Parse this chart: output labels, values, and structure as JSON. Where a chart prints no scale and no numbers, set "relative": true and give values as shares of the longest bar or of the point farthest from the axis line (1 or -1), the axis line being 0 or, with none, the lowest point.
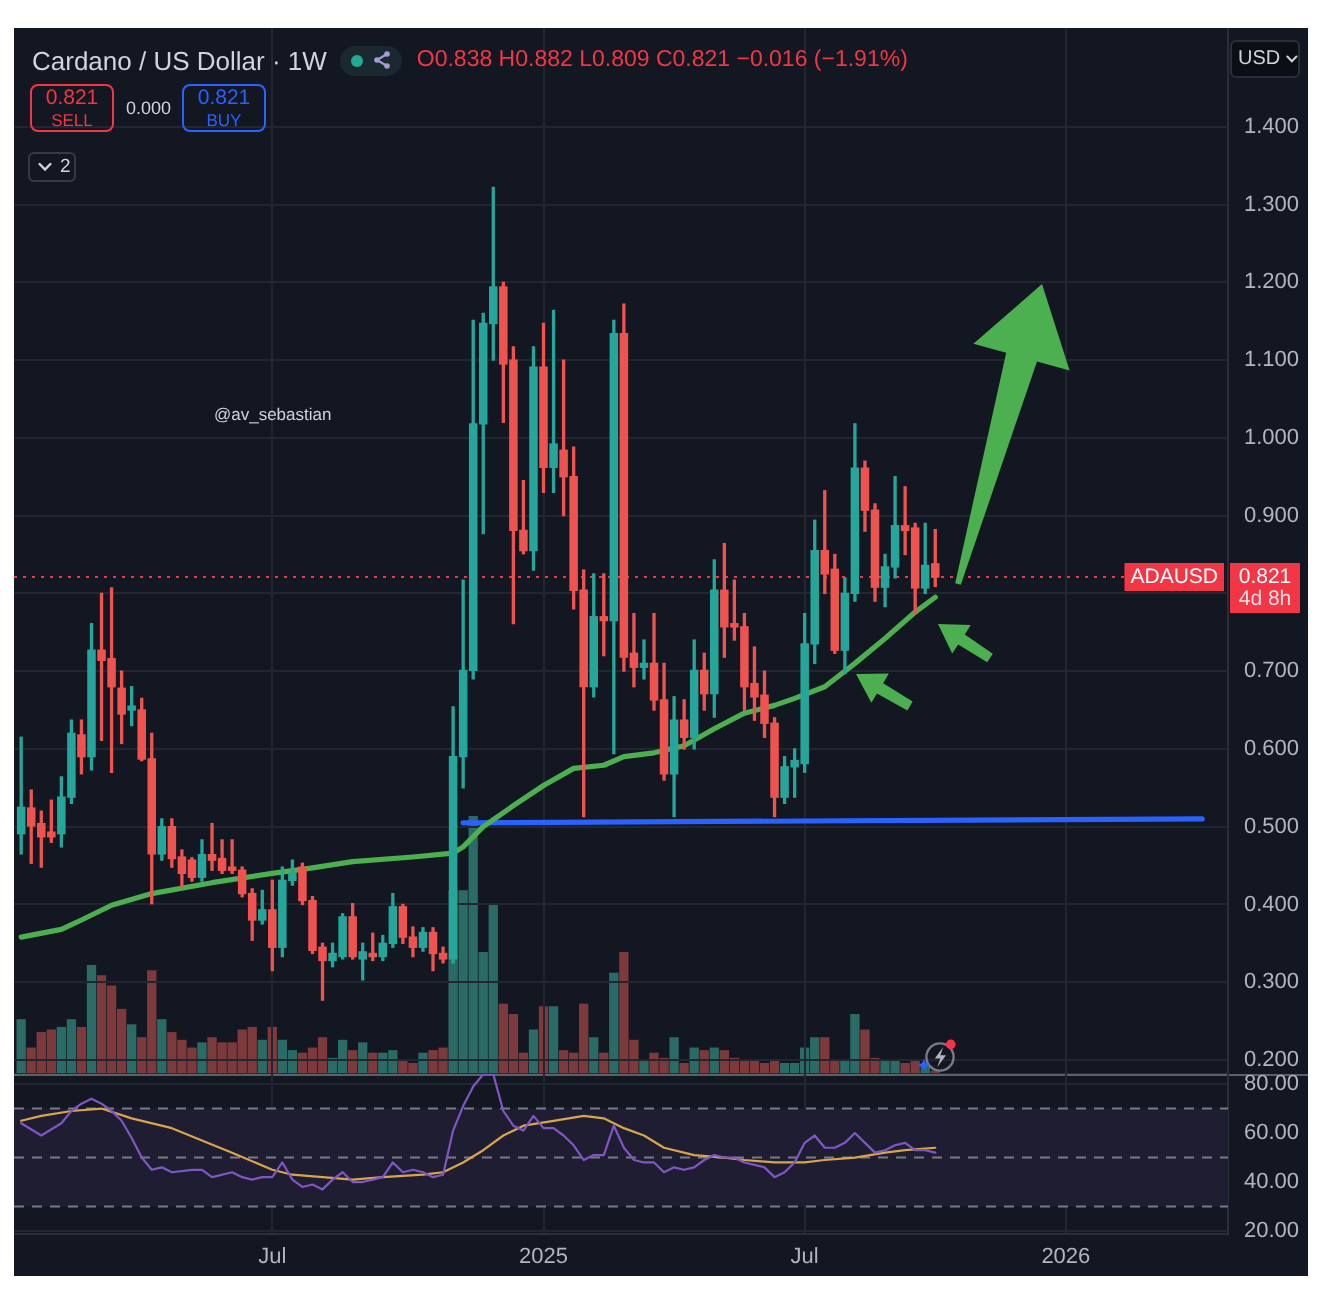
{
  "chart_data": [
    {
      "type": "candlestick",
      "title": "Cardano / US Dollar · 1W",
      "subtitle": "O0.838 H0.882 L0.809 C0.821 −0.016 (−1.91%)",
      "x": [
        "2024-01-08",
        "2024-01-15",
        "2024-01-22",
        "2024-01-29",
        "2024-02-05",
        "2024-02-12",
        "2024-02-19",
        "2024-02-26",
        "2024-03-04",
        "2024-03-11",
        "2024-03-18",
        "2024-03-25",
        "2024-04-01",
        "2024-04-08",
        "2024-04-15",
        "2024-04-22",
        "2024-04-29",
        "2024-05-06",
        "2024-05-13",
        "2024-05-20",
        "2024-05-27",
        "2024-06-03",
        "2024-06-10",
        "2024-06-17",
        "2024-06-24",
        "2024-07-01",
        "2024-07-08",
        "2024-07-15",
        "2024-07-22",
        "2024-07-29",
        "2024-08-05",
        "2024-08-12",
        "2024-08-19",
        "2024-08-26",
        "2024-09-02",
        "2024-09-09",
        "2024-09-16",
        "2024-09-23",
        "2024-09-30",
        "2024-10-07",
        "2024-10-14",
        "2024-10-21",
        "2024-10-28",
        "2024-11-04",
        "2024-11-11",
        "2024-11-18",
        "2024-11-25",
        "2024-12-02",
        "2024-12-09",
        "2024-12-16",
        "2024-12-23",
        "2024-12-30",
        "2025-01-06",
        "2025-01-13",
        "2025-01-20",
        "2025-01-27",
        "2025-02-03",
        "2025-02-10",
        "2025-02-17",
        "2025-02-24",
        "2025-03-03",
        "2025-03-10",
        "2025-03-17",
        "2025-03-24",
        "2025-03-31",
        "2025-04-07",
        "2025-04-14",
        "2025-04-21",
        "2025-04-28",
        "2025-05-05",
        "2025-05-12",
        "2025-05-19",
        "2025-05-26",
        "2025-06-02",
        "2025-06-09",
        "2025-06-16",
        "2025-06-23",
        "2025-06-30",
        "2025-07-07",
        "2025-07-14",
        "2025-07-21",
        "2025-07-28",
        "2025-08-04",
        "2025-08-11",
        "2025-08-18",
        "2025-08-25",
        "2025-09-01",
        "2025-09-08",
        "2025-09-15",
        "2025-09-22",
        "2025-09-29",
        "2025-10-06"
      ],
      "ohlc": [
        [
          0.491,
          0.615,
          0.465,
          0.525
        ],
        [
          0.524,
          0.547,
          0.453,
          0.501
        ],
        [
          0.504,
          0.52,
          0.448,
          0.487
        ],
        [
          0.493,
          0.534,
          0.48,
          0.487
        ],
        [
          0.491,
          0.564,
          0.474,
          0.538
        ],
        [
          0.538,
          0.637,
          0.53,
          0.62
        ],
        [
          0.618,
          0.637,
          0.568,
          0.59
        ],
        [
          0.59,
          0.761,
          0.573,
          0.727
        ],
        [
          0.727,
          0.8,
          0.611,
          0.714
        ],
        [
          0.716,
          0.807,
          0.57,
          0.68
        ],
        [
          0.678,
          0.7,
          0.607,
          0.645
        ],
        [
          0.65,
          0.68,
          0.63,
          0.655
        ],
        [
          0.65,
          0.665,
          0.585,
          0.587
        ],
        [
          0.587,
          0.62,
          0.401,
          0.465
        ],
        [
          0.465,
          0.51,
          0.457,
          0.5
        ],
        [
          0.5,
          0.51,
          0.448,
          0.459
        ],
        [
          0.461,
          0.47,
          0.423,
          0.44
        ],
        [
          0.457,
          0.46,
          0.43,
          0.435
        ],
        [
          0.435,
          0.483,
          0.43,
          0.464
        ],
        [
          0.464,
          0.504,
          0.444,
          0.457
        ],
        [
          0.459,
          0.483,
          0.44,
          0.444
        ],
        [
          0.448,
          0.483,
          0.44,
          0.444
        ],
        [
          0.444,
          0.448,
          0.41,
          0.414
        ],
        [
          0.414,
          0.42,
          0.354,
          0.38
        ],
        [
          0.38,
          0.418,
          0.375,
          0.393
        ],
        [
          0.393,
          0.431,
          0.315,
          0.345
        ],
        [
          0.345,
          0.448,
          0.333,
          0.431
        ],
        [
          0.431,
          0.457,
          0.425,
          0.44
        ],
        [
          0.448,
          0.453,
          0.4,
          0.405
        ],
        [
          0.405,
          0.41,
          0.337,
          0.341
        ],
        [
          0.345,
          0.35,
          0.277,
          0.328
        ],
        [
          0.328,
          0.35,
          0.32,
          0.337
        ],
        [
          0.333,
          0.388,
          0.33,
          0.384
        ],
        [
          0.384,
          0.401,
          0.33,
          0.333
        ],
        [
          0.33,
          0.35,
          0.303,
          0.339
        ],
        [
          0.337,
          0.363,
          0.328,
          0.333
        ],
        [
          0.333,
          0.36,
          0.328,
          0.35
        ],
        [
          0.35,
          0.414,
          0.345,
          0.397
        ],
        [
          0.397,
          0.4,
          0.35,
          0.358
        ],
        [
          0.358,
          0.371,
          0.333,
          0.345
        ],
        [
          0.345,
          0.37,
          0.34,
          0.364
        ],
        [
          0.364,
          0.37,
          0.315,
          0.337
        ],
        [
          0.337,
          0.345,
          0.325,
          0.33
        ],
        [
          0.33,
          0.654,
          0.325,
          0.59
        ],
        [
          0.59,
          0.817,
          0.55,
          0.701
        ],
        [
          0.701,
          1.151,
          0.69,
          1.018
        ],
        [
          1.018,
          1.16,
          0.877,
          1.147
        ],
        [
          1.147,
          1.322,
          1.1,
          1.194
        ],
        [
          1.194,
          1.2,
          1.02,
          1.095
        ],
        [
          1.1,
          1.117,
          0.761,
          0.881
        ],
        [
          0.881,
          0.945,
          0.851,
          0.855
        ],
        [
          0.855,
          1.117,
          0.83,
          1.091
        ],
        [
          1.091,
          1.147,
          0.93,
          0.962
        ],
        [
          0.962,
          1.164,
          0.93,
          0.992
        ],
        [
          0.984,
          1.1,
          0.9,
          0.95
        ],
        [
          0.95,
          0.988,
          0.78,
          0.804
        ],
        [
          0.804,
          0.83,
          0.513,
          0.68
        ],
        [
          0.68,
          0.825,
          0.667,
          0.77
        ],
        [
          0.77,
          0.825,
          0.72,
          0.765
        ],
        [
          0.765,
          1.151,
          0.594,
          1.134
        ],
        [
          1.134,
          1.172,
          0.7,
          0.718
        ],
        [
          0.723,
          0.774,
          0.68,
          0.705
        ],
        [
          0.705,
          0.74,
          0.69,
          0.71
        ],
        [
          0.71,
          0.774,
          0.65,
          0.663
        ],
        [
          0.663,
          0.71,
          0.56,
          0.568
        ],
        [
          0.568,
          0.667,
          0.513,
          0.637
        ],
        [
          0.637,
          0.663,
          0.6,
          0.615
        ],
        [
          0.615,
          0.74,
          0.6,
          0.701
        ],
        [
          0.701,
          0.723,
          0.65,
          0.671
        ],
        [
          0.671,
          0.843,
          0.641,
          0.804
        ],
        [
          0.804,
          0.864,
          0.718,
          0.757
        ],
        [
          0.761,
          0.817,
          0.74,
          0.757
        ],
        [
          0.757,
          0.774,
          0.65,
          0.68
        ],
        [
          0.684,
          0.731,
          0.637,
          0.667
        ],
        [
          0.669,
          0.7,
          0.615,
          0.633
        ],
        [
          0.633,
          0.64,
          0.513,
          0.538
        ],
        [
          0.538,
          0.59,
          0.53,
          0.577
        ],
        [
          0.577,
          0.6,
          0.538,
          0.585
        ],
        [
          0.581,
          0.774,
          0.57,
          0.735
        ],
        [
          0.735,
          0.894,
          0.71,
          0.855
        ],
        [
          0.855,
          0.932,
          0.8,
          0.825
        ],
        [
          0.831,
          0.85,
          0.723,
          0.727
        ],
        [
          0.727,
          0.82,
          0.697,
          0.8
        ],
        [
          0.8,
          1.018,
          0.79,
          0.961
        ],
        [
          0.961,
          0.97,
          0.88,
          0.907
        ],
        [
          0.907,
          0.915,
          0.79,
          0.808
        ],
        [
          0.808,
          0.85,
          0.783,
          0.834
        ],
        [
          0.834,
          0.95,
          0.82,
          0.887
        ],
        [
          0.887,
          0.937,
          0.85,
          0.881
        ],
        [
          0.884,
          0.89,
          0.774,
          0.807
        ],
        [
          0.807,
          0.89,
          0.8,
          0.836
        ],
        [
          0.838,
          0.882,
          0.809,
          0.821
        ]
      ],
      "colors": [
        "#26a69a",
        "#ef5350",
        "#ef5350",
        "#ef5350",
        "#26a69a",
        "#26a69a",
        "#ef5350",
        "#26a69a",
        "#ef5350",
        "#ef5350",
        "#ef5350",
        "#26a69a",
        "#ef5350",
        "#ef5350",
        "#26a69a",
        "#ef5350",
        "#ef5350",
        "#ef5350",
        "#26a69a",
        "#ef5350",
        "#ef5350",
        "#ef5350",
        "#ef5350",
        "#ef5350",
        "#26a69a",
        "#ef5350",
        "#26a69a",
        "#26a69a",
        "#ef5350",
        "#ef5350",
        "#ef5350",
        "#26a69a",
        "#26a69a",
        "#ef5350",
        "#26a69a",
        "#ef5350",
        "#26a69a",
        "#26a69a",
        "#ef5350",
        "#ef5350",
        "#26a69a",
        "#ef5350",
        "#ef5350",
        "#26a69a",
        "#26a69a",
        "#26a69a",
        "#26a69a",
        "#26a69a",
        "#ef5350",
        "#ef5350",
        "#ef5350",
        "#26a69a",
        "#ef5350",
        "#26a69a",
        "#ef5350",
        "#ef5350",
        "#ef5350",
        "#26a69a",
        "#ef5350",
        "#26a69a",
        "#ef5350",
        "#ef5350",
        "#26a69a",
        "#ef5350",
        "#ef5350",
        "#26a69a",
        "#ef5350",
        "#26a69a",
        "#ef5350",
        "#26a69a",
        "#ef5350",
        "#ef5350",
        "#ef5350",
        "#ef5350",
        "#ef5350",
        "#ef5350",
        "#26a69a",
        "#26a69a",
        "#26a69a",
        "#26a69a",
        "#ef5350",
        "#ef5350",
        "#26a69a",
        "#26a69a",
        "#ef5350",
        "#ef5350",
        "#26a69a",
        "#26a69a",
        "#ef5350",
        "#ef5350",
        "#26a69a",
        "#ef5350"
      ],
      "series": [
        {
          "type": "line",
          "color": "#4caf50",
          "x": [
            "2024-01-08",
            "2024-02-05",
            "2024-02-19",
            "2024-03-11",
            "2024-04-08",
            "2024-05-20",
            "2024-07-01",
            "2024-07-29",
            "2024-08-26",
            "2024-10-07",
            "2024-11-04",
            "2024-11-11",
            "2024-11-25",
            "2024-12-16",
            "2025-01-06",
            "2025-01-27",
            "2025-02-17",
            "2025-03-03",
            "2025-03-24",
            "2025-04-14",
            "2025-05-05",
            "2025-05-26",
            "2025-06-16",
            "2025-06-30",
            "2025-07-21",
            "2025-08-11",
            "2025-09-01",
            "2025-09-22",
            "2025-10-06"
          ],
          "values": [
            0.358,
            0.368,
            0.38,
            0.399,
            0.414,
            0.428,
            0.44,
            0.447,
            0.455,
            0.461,
            0.466,
            0.474,
            0.5,
            0.527,
            0.553,
            0.575,
            0.579,
            0.59,
            0.595,
            0.604,
            0.626,
            0.646,
            0.656,
            0.665,
            0.68,
            0.71,
            0.742,
            0.776,
            0.795
          ]
        },
        {
          "type": "line",
          "color": "#2962ff",
          "x": [
            "2024-11-11",
            "2026-04-10"
          ],
          "values": [
            0.505,
            0.51
          ]
        }
      ],
      "ref_lines": [
        {
          "axis": "y",
          "value": 0.821,
          "label": "ADAUSD",
          "color": "#f23645",
          "line_style": "dotted"
        }
      ],
      "annotations": [
        "@av_sebastian",
        "4d 8h",
        "0.821",
        "SELL",
        "0.000",
        "0.821",
        "BUY",
        "USD",
        "2"
      ],
      "xlim": [
        "2024-01-03",
        "2026-04-28"
      ],
      "xticks": [
        {
          "value": "2024-07-01",
          "label": null
        },
        {
          "value": "2025-01-06",
          "label": null
        },
        {
          "value": "2025-07-07",
          "label": null
        },
        {
          "value": "2026-01-05",
          "label": null
        }
      ],
      "ylim": [
        0.182,
        1.527
      ],
      "yticks": [
        {
          "value": 0.2,
          "label": "0.200"
        },
        {
          "value": 0.3,
          "label": "0.300"
        },
        {
          "value": 0.4,
          "label": "0.400"
        },
        {
          "value": 0.5,
          "label": "0.500"
        },
        {
          "value": 0.6,
          "label": "0.600"
        },
        {
          "value": 0.7,
          "label": "0.700"
        },
        {
          "value": 0.8,
          "label": null
        },
        {
          "value": 0.9,
          "label": "0.900"
        },
        {
          "value": 1.0,
          "label": "1.000"
        },
        {
          "value": 1.1,
          "label": "1.100"
        },
        {
          "value": 1.2,
          "label": "1.200"
        },
        {
          "value": 1.3,
          "label": "1.300"
        },
        {
          "value": 1.4,
          "label": "1.400"
        }
      ],
      "tick_labels": "y",
      "grid": true
    },
    {
      "type": "bar",
      "relative": true,
      "x": [
        "2024-01-08",
        "2024-01-15",
        "2024-01-22",
        "2024-01-29",
        "2024-02-05",
        "2024-02-12",
        "2024-02-19",
        "2024-02-26",
        "2024-03-04",
        "2024-03-11",
        "2024-03-18",
        "2024-03-25",
        "2024-04-01",
        "2024-04-08",
        "2024-04-15",
        "2024-04-22",
        "2024-04-29",
        "2024-05-06",
        "2024-05-13",
        "2024-05-20",
        "2024-05-27",
        "2024-06-03",
        "2024-06-10",
        "2024-06-17",
        "2024-06-24",
        "2024-07-01",
        "2024-07-08",
        "2024-07-15",
        "2024-07-22",
        "2024-07-29",
        "2024-08-05",
        "2024-08-12",
        "2024-08-19",
        "2024-08-26",
        "2024-09-02",
        "2024-09-09",
        "2024-09-16",
        "2024-09-23",
        "2024-09-30",
        "2024-10-07",
        "2024-10-14",
        "2024-10-21",
        "2024-10-28",
        "2024-11-04",
        "2024-11-11",
        "2024-11-18",
        "2024-11-25",
        "2024-12-02",
        "2024-12-09",
        "2024-12-16",
        "2024-12-23",
        "2024-12-30",
        "2025-01-06",
        "2025-01-13",
        "2025-01-20",
        "2025-01-27",
        "2025-02-03",
        "2025-02-10",
        "2025-02-17",
        "2025-02-24",
        "2025-03-03",
        "2025-03-10",
        "2025-03-17",
        "2025-03-24",
        "2025-03-31",
        "2025-04-07",
        "2025-04-14",
        "2025-04-21",
        "2025-04-28",
        "2025-05-05",
        "2025-05-12",
        "2025-05-19",
        "2025-05-26",
        "2025-06-02",
        "2025-06-09",
        "2025-06-16",
        "2025-06-23",
        "2025-06-30",
        "2025-07-07",
        "2025-07-14",
        "2025-07-21",
        "2025-07-28",
        "2025-08-04",
        "2025-08-11",
        "2025-08-18",
        "2025-08-25",
        "2025-09-01",
        "2025-09-08",
        "2025-09-15",
        "2025-09-22",
        "2025-09-29",
        "2025-10-06"
      ],
      "values": [
        0.21,
        0.1,
        0.16,
        0.17,
        0.18,
        0.21,
        0.18,
        0.42,
        0.38,
        0.34,
        0.25,
        0.19,
        0.14,
        0.4,
        0.21,
        0.16,
        0.13,
        0.1,
        0.12,
        0.14,
        0.12,
        0.12,
        0.17,
        0.18,
        0.13,
        0.18,
        0.13,
        0.09,
        0.08,
        0.1,
        0.14,
        0.06,
        0.13,
        0.09,
        0.12,
        0.08,
        0.08,
        0.09,
        0.05,
        0.04,
        0.08,
        0.09,
        0.1,
        0.71,
        0.71,
        1,
        0.47,
        0.66,
        0.27,
        0.23,
        0.08,
        0.17,
        0.26,
        0.26,
        0.09,
        0.08,
        0.27,
        0.14,
        0.08,
        0.39,
        0.47,
        0.13,
        0.05,
        0.08,
        0.06,
        0.14,
        0.04,
        0.1,
        0.09,
        0.1,
        0.09,
        0.06,
        0.05,
        0.05,
        0.04,
        0.05,
        0.04,
        0.04,
        0.1,
        0.14,
        0.14,
        0.05,
        0.05,
        0.23,
        0.17,
        0.06,
        0.05,
        0.05,
        0.04,
        0.05,
        0.03,
        0.01
      ],
      "colors": [
        "#2a6b66",
        "#7d3a3c",
        "#7d3a3c",
        "#7d3a3c",
        "#2a6b66",
        "#2a6b66",
        "#7d3a3c",
        "#2a6b66",
        "#7d3a3c",
        "#7d3a3c",
        "#7d3a3c",
        "#2a6b66",
        "#7d3a3c",
        "#7d3a3c",
        "#2a6b66",
        "#7d3a3c",
        "#7d3a3c",
        "#7d3a3c",
        "#2a6b66",
        "#7d3a3c",
        "#7d3a3c",
        "#7d3a3c",
        "#7d3a3c",
        "#7d3a3c",
        "#2a6b66",
        "#7d3a3c",
        "#2a6b66",
        "#2a6b66",
        "#7d3a3c",
        "#7d3a3c",
        "#7d3a3c",
        "#2a6b66",
        "#2a6b66",
        "#7d3a3c",
        "#2a6b66",
        "#7d3a3c",
        "#2a6b66",
        "#2a6b66",
        "#7d3a3c",
        "#7d3a3c",
        "#2a6b66",
        "#7d3a3c",
        "#7d3a3c",
        "#2a6b66",
        "#2a6b66",
        "#2a6b66",
        "#2a6b66",
        "#2a6b66",
        "#7d3a3c",
        "#7d3a3c",
        "#7d3a3c",
        "#2a6b66",
        "#7d3a3c",
        "#2a6b66",
        "#7d3a3c",
        "#7d3a3c",
        "#7d3a3c",
        "#2a6b66",
        "#7d3a3c",
        "#2a6b66",
        "#7d3a3c",
        "#7d3a3c",
        "#2a6b66",
        "#7d3a3c",
        "#7d3a3c",
        "#2a6b66",
        "#7d3a3c",
        "#2a6b66",
        "#7d3a3c",
        "#2a6b66",
        "#7d3a3c",
        "#7d3a3c",
        "#7d3a3c",
        "#7d3a3c",
        "#7d3a3c",
        "#7d3a3c",
        "#2a6b66",
        "#2a6b66",
        "#2a6b66",
        "#2a6b66",
        "#7d3a3c",
        "#7d3a3c",
        "#2a6b66",
        "#2a6b66",
        "#7d3a3c",
        "#7d3a3c",
        "#2a6b66",
        "#2a6b66",
        "#7d3a3c",
        "#7d3a3c",
        "#2a6b66",
        "#7d3a3c"
      ],
      "xlim": [
        "2024-01-03",
        "2026-04-28"
      ],
      "tick_labels": false
    },
    {
      "type": "line",
      "series": [
        {
          "color": "#7e57c2",
          "x": [
            "2024-01-08",
            "2024-01-22",
            "2024-02-05",
            "2024-02-12",
            "2024-02-19",
            "2024-02-26",
            "2024-03-04",
            "2024-03-11",
            "2024-03-18",
            "2024-03-25",
            "2024-04-01",
            "2024-04-08",
            "2024-04-15",
            "2024-04-22",
            "2024-05-06",
            "2024-05-13",
            "2024-05-20",
            "2024-06-03",
            "2024-06-10",
            "2024-06-17",
            "2024-06-24",
            "2024-07-01",
            "2024-07-08",
            "2024-07-15",
            "2024-07-22",
            "2024-07-29",
            "2024-08-05",
            "2024-08-12",
            "2024-08-19",
            "2024-08-26",
            "2024-09-02",
            "2024-09-09",
            "2024-09-16",
            "2024-09-23",
            "2024-09-30",
            "2024-10-07",
            "2024-10-14",
            "2024-10-21",
            "2024-10-28",
            "2024-11-04",
            "2024-11-11",
            "2024-11-18",
            "2024-11-25",
            "2024-12-02",
            "2024-12-09",
            "2024-12-16",
            "2024-12-23",
            "2024-12-30",
            "2025-01-06",
            "2025-01-13",
            "2025-01-20",
            "2025-01-27",
            "2025-02-03",
            "2025-02-10",
            "2025-02-17",
            "2025-02-24",
            "2025-03-03",
            "2025-03-10",
            "2025-03-17",
            "2025-03-24",
            "2025-03-31",
            "2025-04-07",
            "2025-04-14",
            "2025-04-21",
            "2025-04-28",
            "2025-05-05",
            "2025-05-12",
            "2025-05-19",
            "2025-05-26",
            "2025-06-02",
            "2025-06-09",
            "2025-06-16",
            "2025-06-23",
            "2025-06-30",
            "2025-07-07",
            "2025-07-14",
            "2025-07-21",
            "2025-07-28",
            "2025-08-04",
            "2025-08-11",
            "2025-08-18",
            "2025-08-25",
            "2025-09-01",
            "2025-09-08",
            "2025-09-15",
            "2025-09-22",
            "2025-09-29",
            "2025-10-06"
          ],
          "values": [
            64,
            59,
            64,
            69,
            72,
            74,
            72,
            69,
            65,
            58,
            50,
            45,
            46,
            44,
            45,
            45,
            42,
            44,
            42,
            41,
            42,
            42,
            48,
            41,
            38,
            39,
            37,
            41,
            44,
            40,
            40,
            41,
            42,
            48,
            44,
            45,
            44,
            42,
            43,
            61,
            71,
            79,
            84,
            84,
            69,
            63,
            61,
            67,
            62,
            62,
            59,
            55,
            49,
            51,
            51,
            63,
            54,
            49,
            48,
            48,
            44,
            46,
            45,
            46,
            49,
            51,
            50,
            50,
            48,
            47,
            46,
            42,
            44,
            48,
            56,
            59,
            54,
            54,
            56,
            60,
            56,
            52,
            53,
            55,
            56,
            53,
            53,
            52
          ]
        },
        {
          "color": "#d8a54a",
          "x": [
            "2024-01-08",
            "2024-01-22",
            "2024-02-12",
            "2024-03-04",
            "2024-03-25",
            "2024-04-22",
            "2024-05-13",
            "2024-06-03",
            "2024-07-01",
            "2024-07-15",
            "2024-08-05",
            "2024-08-26",
            "2024-09-16",
            "2024-10-14",
            "2024-10-28",
            "2024-11-11",
            "2024-11-25",
            "2024-12-09",
            "2024-12-23",
            "2025-01-13",
            "2025-02-03",
            "2025-02-17",
            "2025-03-03",
            "2025-03-17",
            "2025-03-31",
            "2025-04-21",
            "2025-05-12",
            "2025-05-26",
            "2025-06-16",
            "2025-07-07",
            "2025-07-21",
            "2025-08-11",
            "2025-09-01",
            "2025-09-15",
            "2025-10-06"
          ],
          "values": [
            65,
            67,
            69,
            70,
            66,
            62,
            57,
            52,
            45,
            43,
            42,
            41,
            42,
            43,
            44,
            48,
            53,
            59,
            63,
            65,
            67,
            66,
            62,
            59,
            54,
            51,
            50,
            49,
            48,
            48,
            49,
            50,
            52,
            53,
            54
          ]
        }
      ],
      "ref_lines": [
        {
          "axis": "y",
          "value": 70,
          "color": "#787b86",
          "line_style": "dashed"
        },
        {
          "axis": "y",
          "value": 50,
          "color": "#787b86",
          "line_style": "dashed"
        },
        {
          "axis": "y",
          "value": 30,
          "color": "#787b86",
          "line_style": "dashed"
        }
      ],
      "bands": [
        {
          "axis": "y",
          "from": 30,
          "to": 70,
          "color": "#1e1d32"
        }
      ],
      "xlim": [
        "2024-01-03",
        "2026-04-28"
      ],
      "xticks": [
        {
          "value": "2024-07-01",
          "label": "Jul"
        },
        {
          "value": "2025-01-06",
          "label": "2025"
        },
        {
          "value": "2025-07-07",
          "label": "Jul"
        },
        {
          "value": "2026-01-05",
          "label": "2026"
        }
      ],
      "ylim": [
        18.8,
        84.1
      ],
      "yticks": [
        {
          "value": 20,
          "label": "20.00"
        },
        {
          "value": 40,
          "label": "40.00"
        },
        {
          "value": 60,
          "label": "60.00"
        },
        {
          "value": 80,
          "label": "80.00"
        }
      ],
      "grid": true
    }
  ]
}
